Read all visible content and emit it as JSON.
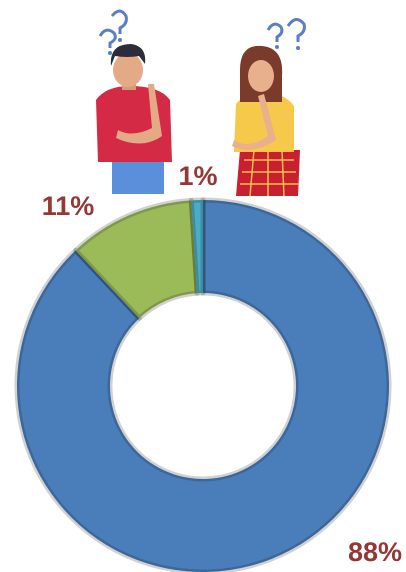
{
  "chart_data": {
    "type": "donut",
    "values": [
      88,
      11,
      1
    ],
    "value_labels": [
      "88%",
      "11%",
      "1%"
    ],
    "colors": [
      "#4a7ebb",
      "#9bbb59",
      "#4bacc6"
    ],
    "label_color": "#953735"
  }
}
